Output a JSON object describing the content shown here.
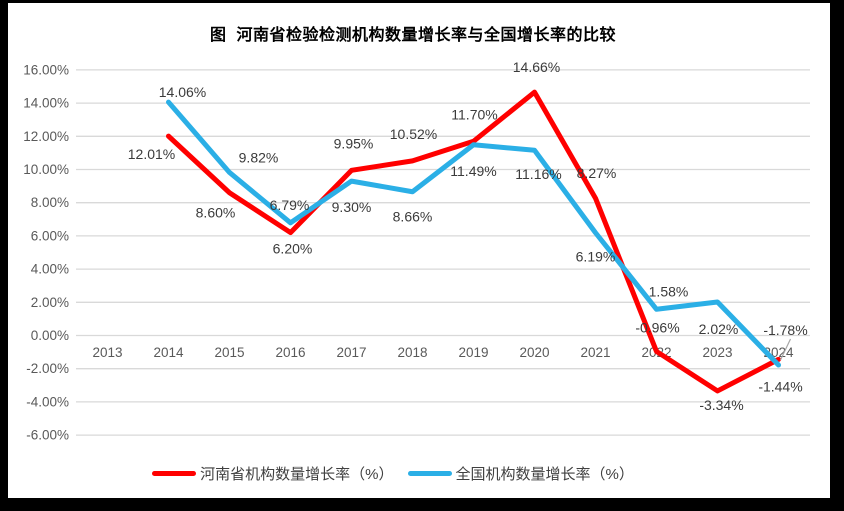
{
  "frame": {
    "border_color": "#000000",
    "canvas_color": "#ffffff",
    "gridline_color": "#d9d9d9",
    "axis_text_color": "#595959",
    "data_label_color": "#3b3b3b",
    "leader_line_color": "#a6a6a6"
  },
  "chart_data": {
    "type": "line",
    "title": "图  河南省检验检测机构数量增长率与全国增长率的比较",
    "categories": [
      "2013",
      "2014",
      "2015",
      "2016",
      "2017",
      "2018",
      "2019",
      "2020",
      "2021",
      "2022",
      "2023",
      "2024"
    ],
    "y_axis": {
      "min": -6,
      "max": 16,
      "step": 2,
      "tick_labels": [
        "16.00%",
        "14.00%",
        "12.00%",
        "10.00%",
        "8.00%",
        "6.00%",
        "4.00%",
        "2.00%",
        "0.00%",
        "-2.00%",
        "-4.00%",
        "-6.00%"
      ]
    },
    "grid": true,
    "legend_position": "bottom-center",
    "series": [
      {
        "name": "河南省机构数量增长率（%）",
        "color": "#FF0000",
        "values": [
          null,
          12.01,
          8.6,
          6.2,
          9.95,
          10.52,
          11.7,
          14.66,
          8.27,
          -0.96,
          -3.34,
          -1.44
        ],
        "point_labels": [
          null,
          "12.01%",
          "8.60%",
          "6.20%",
          "9.95%",
          "10.52%",
          "11.70%",
          "14.66%",
          "8.27%",
          "-0.96%",
          "-3.34%",
          "-1.44%"
        ],
        "label_offsets": [
          null,
          [
            -17,
            18
          ],
          [
            -14,
            20
          ],
          [
            2,
            16
          ],
          [
            2,
            -27
          ],
          [
            1,
            -27
          ],
          [
            1,
            -27
          ],
          [
            2,
            -25
          ],
          [
            1,
            -25
          ],
          [
            1,
            -24
          ],
          [
            4,
            14
          ],
          [
            2,
            27
          ]
        ]
      },
      {
        "name": "全国机构数量增长率（%）",
        "color": "#2BAFE6",
        "values": [
          null,
          14.06,
          9.82,
          6.79,
          9.3,
          8.66,
          11.49,
          11.16,
          6.19,
          1.58,
          2.02,
          -1.78
        ],
        "point_labels": [
          null,
          "14.06%",
          "9.82%",
          "6.79%",
          "9.30%",
          "8.66%",
          "11.49%",
          "11.16%",
          "6.19%",
          "1.58%",
          "2.02%",
          "-1.78%"
        ],
        "label_offsets": [
          null,
          [
            14,
            -10
          ],
          [
            29,
            -15
          ],
          [
            -1,
            -18
          ],
          [
            0,
            26
          ],
          [
            0,
            25
          ],
          [
            0,
            26
          ],
          [
            4,
            24
          ],
          [
            0,
            24
          ],
          [
            12,
            -18
          ],
          [
            1,
            27
          ],
          [
            7,
            -35
          ]
        ],
        "leader_line_index": 11
      }
    ]
  },
  "legend": {
    "items": [
      {
        "label": "河南省机构数量增长率（%）",
        "color": "#FF0000"
      },
      {
        "label": "全国机构数量增长率（%）",
        "color": "#2BAFE6"
      }
    ]
  }
}
